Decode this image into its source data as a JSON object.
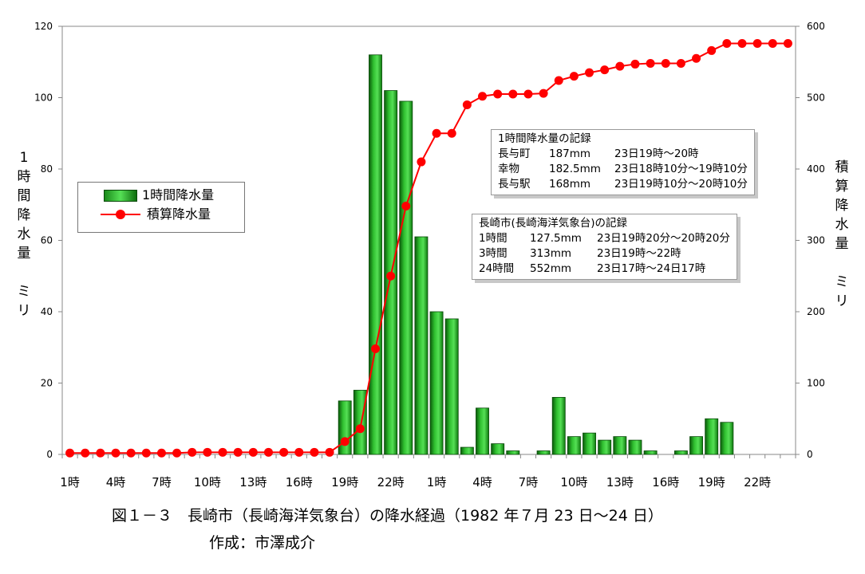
{
  "chart_data": {
    "type": "bar+line",
    "x_tick_labels": [
      "1時",
      "4時",
      "7時",
      "10時",
      "13時",
      "16時",
      "19時",
      "22時",
      "1時",
      "4時",
      "7時",
      "10時",
      "13時",
      "16時",
      "19時",
      "22時"
    ],
    "y_left_label_chars": [
      "1",
      "時",
      "間",
      "降",
      "水",
      "量",
      "",
      "ミ",
      "リ"
    ],
    "y_right_label_chars": [
      "積",
      "算",
      "降",
      "水",
      "量",
      "",
      "ミ",
      "リ"
    ],
    "y_left_ticks": [
      "0",
      "20",
      "40",
      "60",
      "80",
      "100",
      "120"
    ],
    "y_right_ticks": [
      "0",
      "100",
      "200",
      "300",
      "400",
      "500",
      "600"
    ],
    "ylim_left": [
      0,
      120
    ],
    "ylim_right": [
      0,
      600
    ],
    "grid": false,
    "series": [
      {
        "name": "1時間降水量",
        "type": "bar",
        "axis": "left",
        "color": "#22bb22",
        "values": [
          0,
          0,
          0,
          0,
          0,
          0,
          0,
          0,
          0,
          0,
          0,
          0,
          0,
          0,
          0,
          0,
          0,
          0,
          15,
          18,
          112,
          102,
          99,
          61,
          40,
          38,
          2,
          13,
          3,
          1,
          0,
          1,
          16,
          5,
          6,
          4,
          5,
          4,
          1,
          0,
          1,
          5,
          10,
          9,
          0,
          0,
          0,
          0
        ]
      },
      {
        "name": "積算降水量",
        "type": "line",
        "axis": "right",
        "color": "#ff0000",
        "values": [
          2,
          2,
          2,
          2,
          2,
          2,
          2,
          2,
          3,
          3,
          3,
          3,
          3,
          3,
          3,
          3,
          3,
          3,
          18,
          36,
          148,
          250,
          348,
          410,
          450,
          450,
          490,
          502,
          505,
          505,
          505,
          506,
          524,
          530,
          535,
          539,
          544,
          547,
          548,
          548,
          548,
          555,
          566,
          576,
          576,
          576,
          576,
          576
        ]
      }
    ]
  },
  "legend": {
    "bar_label": "1時間降水量",
    "line_label": "積算降水量"
  },
  "box1": {
    "title": "1時間降水量の記録",
    "rows": [
      {
        "place": "長与町",
        "amount": "187mm",
        "time": "23日19時～20時"
      },
      {
        "place": "幸物",
        "amount": "182.5mm",
        "time": "23日18時10分～19時10分"
      },
      {
        "place": "長与駅",
        "amount": "168mm",
        "time": "23日19時10分～20時10分"
      }
    ]
  },
  "box2": {
    "title": "長崎市(長崎海洋気象台)の記録",
    "rows": [
      {
        "place": "1時間",
        "amount": "127.5mm",
        "time": "23日19時20分～20時20分"
      },
      {
        "place": "3時間",
        "amount": "313mm",
        "time": "23日19時～22時"
      },
      {
        "place": "24時間",
        "amount": "552mm",
        "time": "23日17時～24日17時"
      }
    ]
  },
  "caption": {
    "title": "図１－３　長崎市（長崎海洋気象台）の降水経過（1982 年７月 23 日～24 日）",
    "author": "作成：市澤成介"
  }
}
